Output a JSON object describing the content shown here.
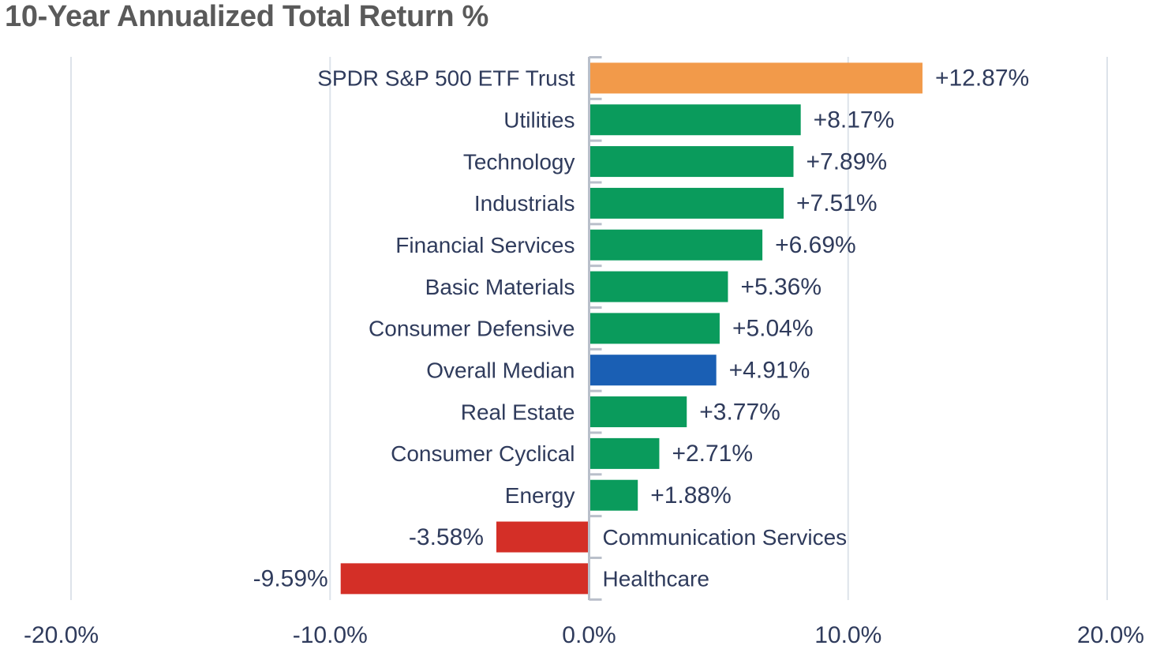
{
  "chart_data": {
    "type": "bar",
    "orientation": "horizontal",
    "title": "10-Year Annualized Total Return %",
    "xlabel": "",
    "ylabel": "",
    "xlim": [
      -20,
      20
    ],
    "ticks": [
      -20,
      -10,
      0,
      10,
      20
    ],
    "tick_labels": [
      "-20.0%",
      "-10.0%",
      "0.0%",
      "10.0%",
      "20.0%"
    ],
    "grid": true,
    "categories": [
      "SPDR S&P 500 ETF Trust",
      "Utilities",
      "Technology",
      "Industrials",
      "Financial Services",
      "Basic Materials",
      "Consumer Defensive",
      "Overall Median",
      "Real Estate",
      "Consumer Cyclical",
      "Energy",
      "Communication Services",
      "Healthcare"
    ],
    "values": [
      12.87,
      8.17,
      7.89,
      7.51,
      6.69,
      5.36,
      5.04,
      4.91,
      3.77,
      2.71,
      1.88,
      -3.58,
      -9.59
    ],
    "value_labels": [
      "+12.87%",
      "+8.17%",
      "+7.89%",
      "+7.51%",
      "+6.69%",
      "+5.36%",
      "+5.04%",
      "+4.91%",
      "+3.77%",
      "+2.71%",
      "+1.88%",
      "-3.58%",
      "-9.59%"
    ],
    "bar_colors": [
      "#f29a4a",
      "#0a9b5c",
      "#0a9b5c",
      "#0a9b5c",
      "#0a9b5c",
      "#0a9b5c",
      "#0a9b5c",
      "#1a5fb4",
      "#0a9b5c",
      "#0a9b5c",
      "#0a9b5c",
      "#d42f27",
      "#d42f27"
    ],
    "colors": {
      "text": "#2f3b5c",
      "grid": "#dde3ea",
      "axis": "#b9bfca",
      "title": "#5a5a5a"
    }
  }
}
